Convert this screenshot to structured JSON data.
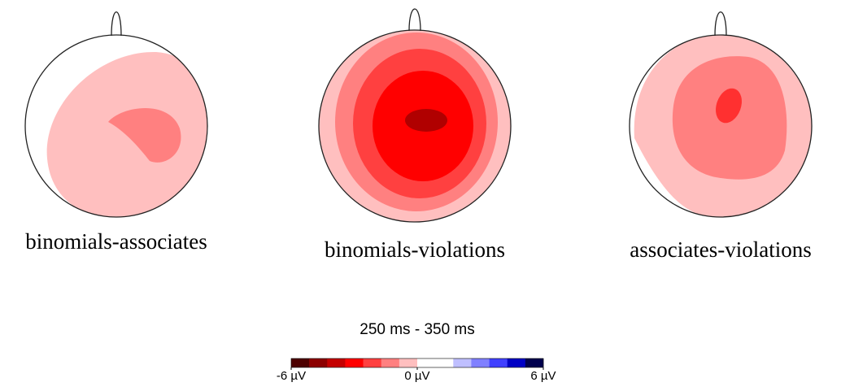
{
  "maps": [
    {
      "label": "binomials-associates"
    },
    {
      "label": "binomials-violations"
    },
    {
      "label": "associates-violations"
    }
  ],
  "time_window": "250 ms - 350 ms",
  "colorbar": {
    "lim": [
      -6,
      6
    ],
    "colors": [
      "#4d0000",
      "#8c0000",
      "#c40000",
      "#ff0000",
      "#ff4040",
      "#ff8080",
      "#ffbfbf",
      "#ffffff",
      "#ffffff",
      "#bfbfff",
      "#8080ff",
      "#4040ff",
      "#0000c4",
      "#00004d"
    ],
    "ticks": [
      {
        "value": -6,
        "label": "-6 µV"
      },
      {
        "value": 0,
        "label": "0 µV"
      },
      {
        "value": 6,
        "label": "6 µV"
      }
    ]
  }
}
